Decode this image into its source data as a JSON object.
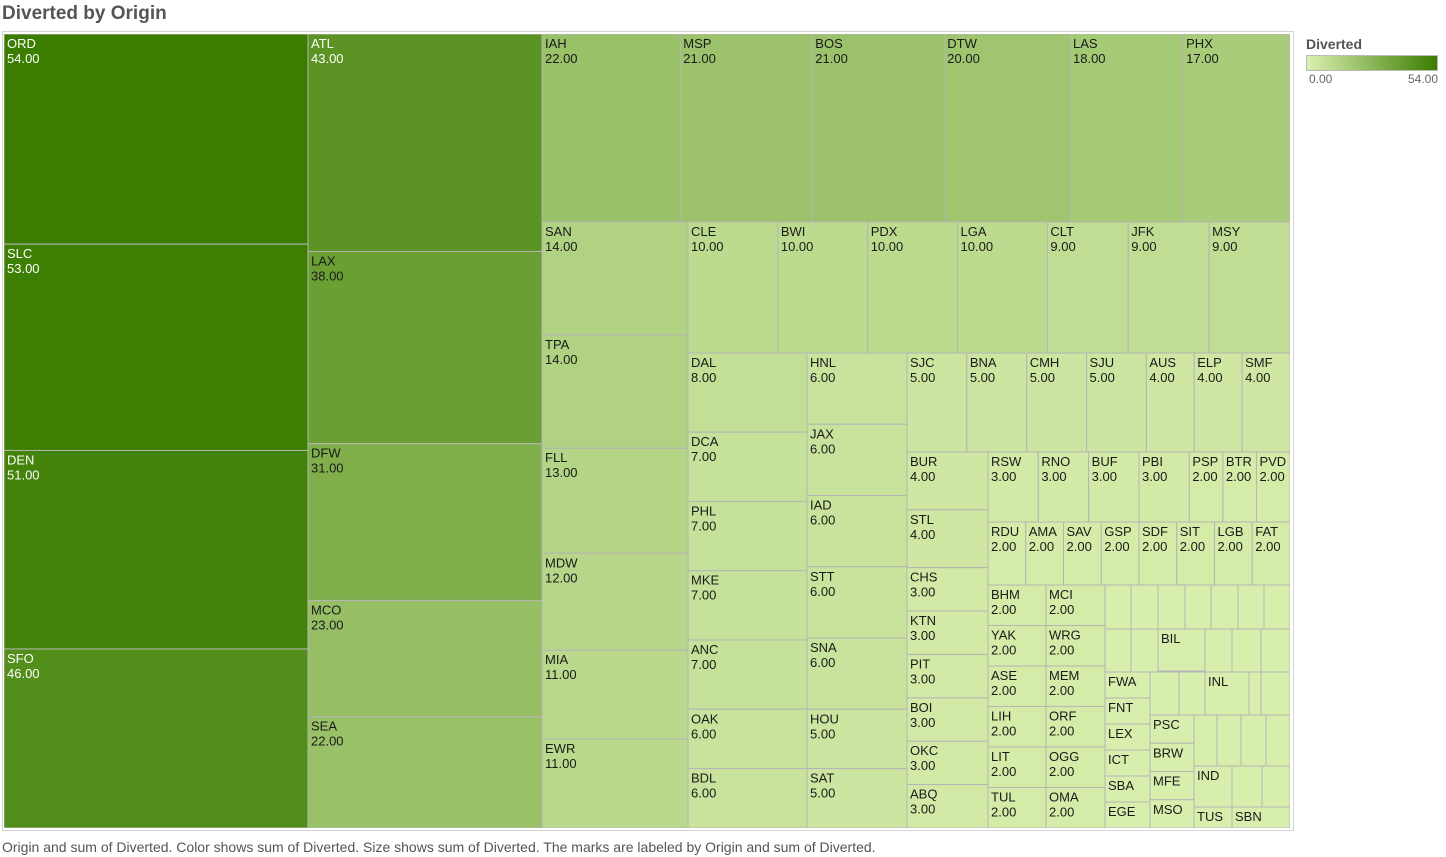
{
  "title": "Diverted by Origin",
  "caption": "Origin and sum of Diverted.  Color shows sum of Diverted.  Size shows sum of Diverted.  The marks are labeled by Origin and sum of Diverted.",
  "legend": {
    "title": "Diverted",
    "min_label": "0.00",
    "max_label": "54.00",
    "color_low": "#dbf0b0",
    "color_high": "#3a7d00"
  },
  "chart_data": {
    "type": "treemap",
    "measure": "sum of Diverted",
    "color_range": [
      0,
      54
    ],
    "items": [
      {
        "origin": "ORD",
        "value": 54
      },
      {
        "origin": "SLC",
        "value": 53
      },
      {
        "origin": "DEN",
        "value": 51
      },
      {
        "origin": "SFO",
        "value": 46
      },
      {
        "origin": "ATL",
        "value": 43
      },
      {
        "origin": "LAX",
        "value": 38
      },
      {
        "origin": "DFW",
        "value": 31
      },
      {
        "origin": "MCO",
        "value": 23
      },
      {
        "origin": "SEA",
        "value": 22
      },
      {
        "origin": "IAH",
        "value": 22
      },
      {
        "origin": "MSP",
        "value": 21
      },
      {
        "origin": "BOS",
        "value": 21
      },
      {
        "origin": "DTW",
        "value": 20
      },
      {
        "origin": "LAS",
        "value": 18
      },
      {
        "origin": "PHX",
        "value": 17
      },
      {
        "origin": "SAN",
        "value": 14
      },
      {
        "origin": "TPA",
        "value": 14
      },
      {
        "origin": "FLL",
        "value": 13
      },
      {
        "origin": "MDW",
        "value": 12
      },
      {
        "origin": "MIA",
        "value": 11
      },
      {
        "origin": "EWR",
        "value": 11
      },
      {
        "origin": "CLE",
        "value": 10
      },
      {
        "origin": "BWI",
        "value": 10
      },
      {
        "origin": "PDX",
        "value": 10
      },
      {
        "origin": "LGA",
        "value": 10
      },
      {
        "origin": "CLT",
        "value": 9
      },
      {
        "origin": "JFK",
        "value": 9
      },
      {
        "origin": "MSY",
        "value": 9
      },
      {
        "origin": "DAL",
        "value": 8
      },
      {
        "origin": "DCA",
        "value": 7
      },
      {
        "origin": "PHL",
        "value": 7
      },
      {
        "origin": "MKE",
        "value": 7
      },
      {
        "origin": "ANC",
        "value": 7
      },
      {
        "origin": "OAK",
        "value": 6
      },
      {
        "origin": "BDL",
        "value": 6
      },
      {
        "origin": "HNL",
        "value": 6
      },
      {
        "origin": "JAX",
        "value": 6
      },
      {
        "origin": "IAD",
        "value": 6
      },
      {
        "origin": "STT",
        "value": 6
      },
      {
        "origin": "SNA",
        "value": 6
      },
      {
        "origin": "HOU",
        "value": 5
      },
      {
        "origin": "SAT",
        "value": 5
      },
      {
        "origin": "SJC",
        "value": 5
      },
      {
        "origin": "BNA",
        "value": 5
      },
      {
        "origin": "CMH",
        "value": 5
      },
      {
        "origin": "SJU",
        "value": 5
      },
      {
        "origin": "AUS",
        "value": 4
      },
      {
        "origin": "ELP",
        "value": 4
      },
      {
        "origin": "SMF",
        "value": 4
      },
      {
        "origin": "BUR",
        "value": 4
      },
      {
        "origin": "STL",
        "value": 4
      },
      {
        "origin": "CHS",
        "value": 3
      },
      {
        "origin": "KTN",
        "value": 3
      },
      {
        "origin": "PIT",
        "value": 3
      },
      {
        "origin": "BOI",
        "value": 3
      },
      {
        "origin": "OKC",
        "value": 3
      },
      {
        "origin": "ABQ",
        "value": 3
      },
      {
        "origin": "RSW",
        "value": 3
      },
      {
        "origin": "RNO",
        "value": 3
      },
      {
        "origin": "BUF",
        "value": 3
      },
      {
        "origin": "PBI",
        "value": 3
      },
      {
        "origin": "PSP",
        "value": 2
      },
      {
        "origin": "BTR",
        "value": 2
      },
      {
        "origin": "PVD",
        "value": 2
      },
      {
        "origin": "RDU",
        "value": 2
      },
      {
        "origin": "AMA",
        "value": 2
      },
      {
        "origin": "SAV",
        "value": 2
      },
      {
        "origin": "GSP",
        "value": 2
      },
      {
        "origin": "SDF",
        "value": 2
      },
      {
        "origin": "SIT",
        "value": 2
      },
      {
        "origin": "LGB",
        "value": 2
      },
      {
        "origin": "FAT",
        "value": 2
      },
      {
        "origin": "BHM",
        "value": 2
      },
      {
        "origin": "MCI",
        "value": 2
      },
      {
        "origin": "YAK",
        "value": 2
      },
      {
        "origin": "WRG",
        "value": 2
      },
      {
        "origin": "ASE",
        "value": 2
      },
      {
        "origin": "MEM",
        "value": 2
      },
      {
        "origin": "LIH",
        "value": 2
      },
      {
        "origin": "ORF",
        "value": 2
      },
      {
        "origin": "LIT",
        "value": 2
      },
      {
        "origin": "OGG",
        "value": 2
      },
      {
        "origin": "TUL",
        "value": 2
      },
      {
        "origin": "OMA",
        "value": 2
      },
      {
        "origin": "FWA",
        "value": 1
      },
      {
        "origin": "FNT",
        "value": 1
      },
      {
        "origin": "LEX",
        "value": 1
      },
      {
        "origin": "ICT",
        "value": 1
      },
      {
        "origin": "SBA",
        "value": 1
      },
      {
        "origin": "EGE",
        "value": 1
      },
      {
        "origin": "PSC",
        "value": 1
      },
      {
        "origin": "BRW",
        "value": 1
      },
      {
        "origin": "MFE",
        "value": 1
      },
      {
        "origin": "MSO",
        "value": 1
      },
      {
        "origin": "BIL",
        "value": 1
      },
      {
        "origin": "INL",
        "value": 1
      },
      {
        "origin": "IND",
        "value": 1
      },
      {
        "origin": "TUS",
        "value": 1
      },
      {
        "origin": "SBN",
        "value": 1
      }
    ]
  }
}
